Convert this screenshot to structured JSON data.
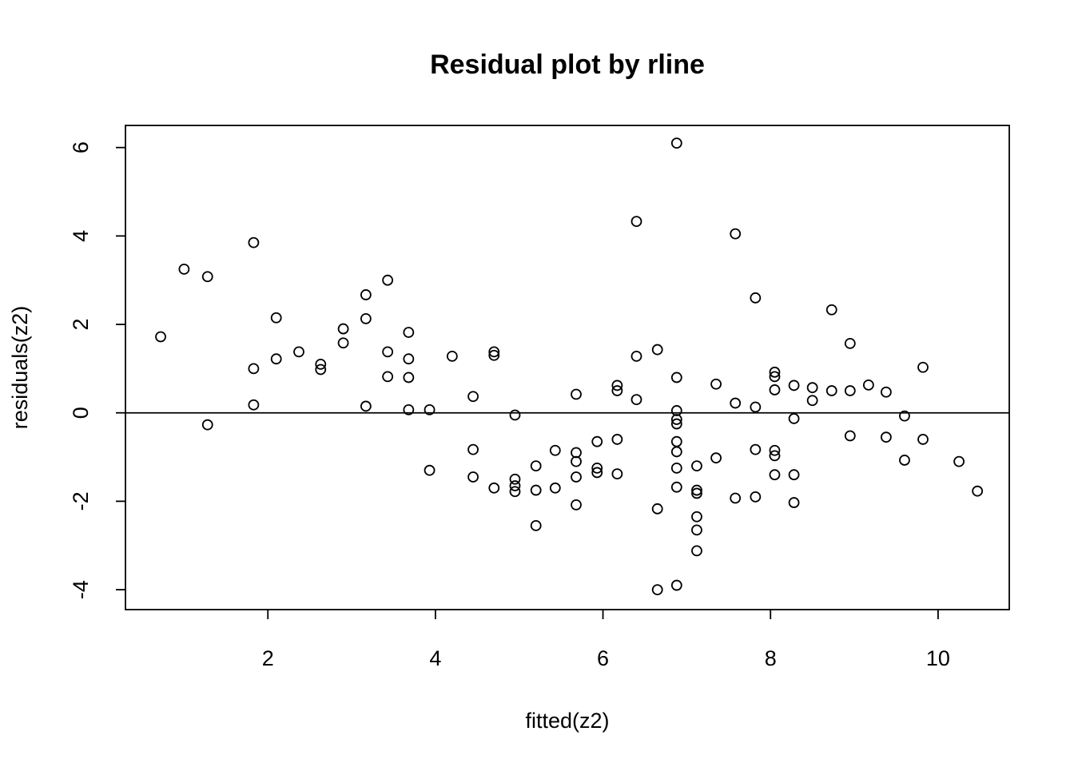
{
  "chart_data": {
    "type": "scatter",
    "title": "Residual plot by rline",
    "xlabel": "fitted(z2)",
    "ylabel": "residuals(z2)",
    "xlim": [
      0.3,
      10.85
    ],
    "ylim": [
      -4.45,
      6.5
    ],
    "xticks": [
      2,
      4,
      6,
      8,
      10
    ],
    "yticks": [
      -4,
      -2,
      0,
      2,
      4,
      6
    ],
    "xtick_labels": [
      "2",
      "4",
      "6",
      "8",
      "10"
    ],
    "ytick_labels": [
      "-4",
      "-2",
      "0",
      "2",
      "4",
      "6"
    ],
    "reference_line_y": 0,
    "marker": "open-circle",
    "points": [
      [
        0.72,
        1.72
      ],
      [
        1.0,
        3.25
      ],
      [
        1.28,
        3.08
      ],
      [
        1.28,
        -0.27
      ],
      [
        1.83,
        3.85
      ],
      [
        1.83,
        1.0
      ],
      [
        1.83,
        0.18
      ],
      [
        2.1,
        2.15
      ],
      [
        2.1,
        1.22
      ],
      [
        2.37,
        1.38
      ],
      [
        2.63,
        1.1
      ],
      [
        2.63,
        0.98
      ],
      [
        2.9,
        1.9
      ],
      [
        2.9,
        1.58
      ],
      [
        3.17,
        2.67
      ],
      [
        3.17,
        2.13
      ],
      [
        3.17,
        0.15
      ],
      [
        3.43,
        3.0
      ],
      [
        3.43,
        1.38
      ],
      [
        3.43,
        0.82
      ],
      [
        3.68,
        1.82
      ],
      [
        3.68,
        1.22
      ],
      [
        3.68,
        0.8
      ],
      [
        3.68,
        0.07
      ],
      [
        3.93,
        0.07
      ],
      [
        3.93,
        -1.3
      ],
      [
        4.2,
        1.28
      ],
      [
        4.45,
        0.37
      ],
      [
        4.45,
        -0.83
      ],
      [
        4.45,
        -1.45
      ],
      [
        4.7,
        1.38
      ],
      [
        4.7,
        1.3
      ],
      [
        4.7,
        -1.7
      ],
      [
        4.95,
        -0.05
      ],
      [
        4.95,
        -1.5
      ],
      [
        4.95,
        -1.65
      ],
      [
        4.95,
        -1.78
      ],
      [
        5.2,
        -1.2
      ],
      [
        5.2,
        -1.75
      ],
      [
        5.2,
        -2.55
      ],
      [
        5.43,
        -0.85
      ],
      [
        5.43,
        -1.7
      ],
      [
        5.68,
        0.42
      ],
      [
        5.68,
        -0.9
      ],
      [
        5.68,
        -1.1
      ],
      [
        5.68,
        -1.45
      ],
      [
        5.68,
        -2.08
      ],
      [
        5.93,
        -0.65
      ],
      [
        5.93,
        -1.25
      ],
      [
        5.93,
        -1.35
      ],
      [
        6.17,
        0.62
      ],
      [
        6.17,
        0.5
      ],
      [
        6.17,
        -0.6
      ],
      [
        6.17,
        -1.38
      ],
      [
        6.4,
        4.33
      ],
      [
        6.4,
        1.28
      ],
      [
        6.4,
        0.3
      ],
      [
        6.65,
        1.43
      ],
      [
        6.65,
        -2.17
      ],
      [
        6.65,
        -4.0
      ],
      [
        6.88,
        6.1
      ],
      [
        6.88,
        0.8
      ],
      [
        6.88,
        0.05
      ],
      [
        6.88,
        -0.15
      ],
      [
        6.88,
        -0.25
      ],
      [
        6.88,
        -0.65
      ],
      [
        6.88,
        -0.88
      ],
      [
        6.88,
        -1.25
      ],
      [
        6.88,
        -1.68
      ],
      [
        6.88,
        -3.9
      ],
      [
        7.12,
        -1.2
      ],
      [
        7.12,
        -1.75
      ],
      [
        7.12,
        -1.82
      ],
      [
        7.12,
        -2.35
      ],
      [
        7.12,
        -2.65
      ],
      [
        7.12,
        -3.12
      ],
      [
        7.35,
        0.65
      ],
      [
        7.35,
        -1.02
      ],
      [
        7.58,
        4.05
      ],
      [
        7.58,
        0.22
      ],
      [
        7.58,
        -1.93
      ],
      [
        7.82,
        2.6
      ],
      [
        7.82,
        0.13
      ],
      [
        7.82,
        -0.83
      ],
      [
        7.82,
        -1.9
      ],
      [
        8.05,
        0.92
      ],
      [
        8.05,
        0.82
      ],
      [
        8.05,
        0.52
      ],
      [
        8.05,
        -0.85
      ],
      [
        8.05,
        -0.97
      ],
      [
        8.05,
        -1.4
      ],
      [
        8.28,
        0.62
      ],
      [
        8.28,
        -0.13
      ],
      [
        8.28,
        -1.4
      ],
      [
        8.28,
        -2.03
      ],
      [
        8.5,
        0.57
      ],
      [
        8.5,
        0.28
      ],
      [
        8.73,
        2.33
      ],
      [
        8.73,
        0.5
      ],
      [
        8.95,
        1.57
      ],
      [
        8.95,
        0.5
      ],
      [
        8.95,
        -0.52
      ],
      [
        9.17,
        0.63
      ],
      [
        9.38,
        0.47
      ],
      [
        9.38,
        -0.55
      ],
      [
        9.6,
        -0.07
      ],
      [
        9.6,
        -1.07
      ],
      [
        9.82,
        1.03
      ],
      [
        9.82,
        -0.6
      ],
      [
        10.25,
        -1.1
      ],
      [
        10.47,
        -1.77
      ]
    ]
  }
}
